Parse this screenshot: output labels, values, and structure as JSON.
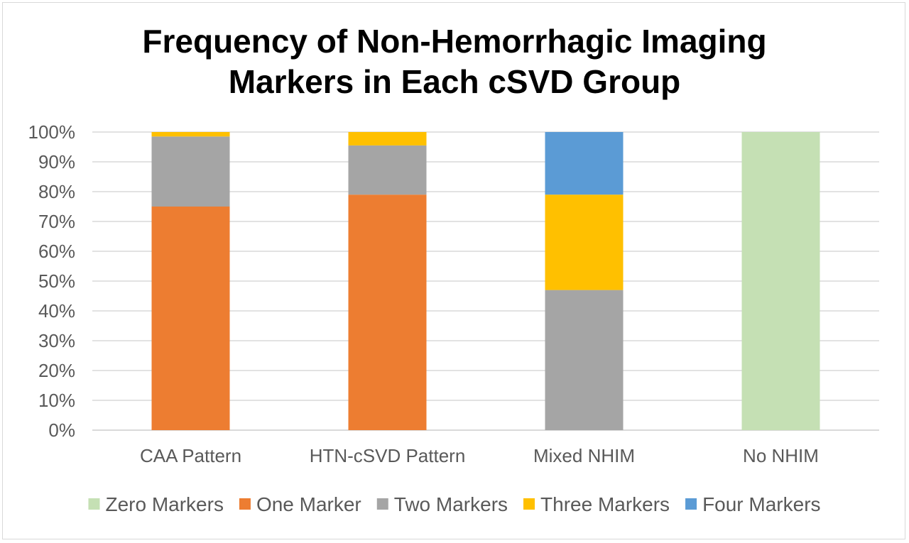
{
  "chart_data": {
    "type": "bar",
    "stacked": true,
    "title_lines": [
      "Frequency of Non-Hemorrhagic Imaging",
      "Markers in Each cSVD Group"
    ],
    "categories": [
      "CAA Pattern",
      "HTN-cSVD Pattern",
      "Mixed NHIM",
      "No NHIM"
    ],
    "y_ticks": [
      "0%",
      "10%",
      "20%",
      "30%",
      "40%",
      "50%",
      "60%",
      "70%",
      "80%",
      "90%",
      "100%"
    ],
    "ylim": [
      0,
      100
    ],
    "grid": true,
    "legend_position": "bottom",
    "series": [
      {
        "name": "Zero Markers",
        "color": "#c5e0b4",
        "values": [
          0,
          0,
          0,
          100
        ]
      },
      {
        "name": "One Marker",
        "color": "#ed7d31",
        "values": [
          75,
          79,
          0,
          0
        ]
      },
      {
        "name": "Two Markers",
        "color": "#a5a5a5",
        "values": [
          23.5,
          16.5,
          47,
          0
        ]
      },
      {
        "name": "Three Markers",
        "color": "#ffc000",
        "values": [
          1.5,
          4.5,
          32,
          0
        ]
      },
      {
        "name": "Four Markers",
        "color": "#5b9bd5",
        "values": [
          0,
          0,
          21,
          0
        ]
      }
    ]
  }
}
